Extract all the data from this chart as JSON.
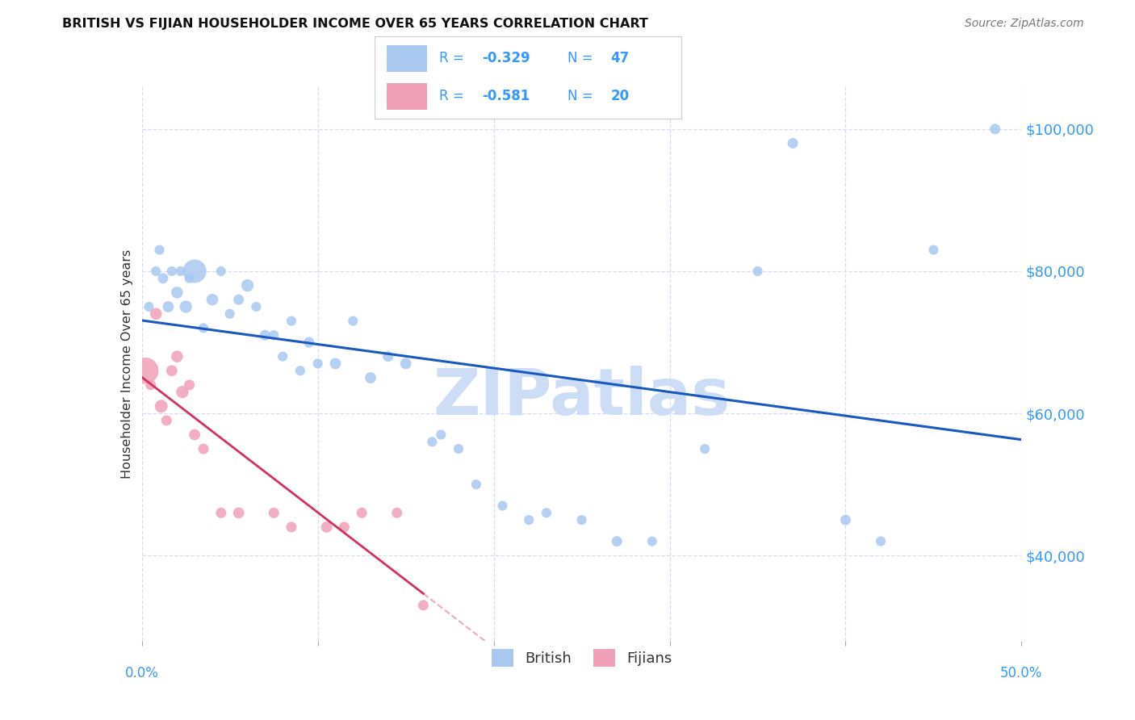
{
  "title": "BRITISH VS FIJIAN HOUSEHOLDER INCOME OVER 65 YEARS CORRELATION CHART",
  "source": "Source: ZipAtlas.com",
  "ylabel": "Householder Income Over 65 years",
  "british_label": "British",
  "fijian_label": "Fijians",
  "british_R": "-0.329",
  "british_N": "47",
  "fijian_R": "-0.581",
  "fijian_N": "20",
  "blue_scatter": "#a8c8f0",
  "pink_scatter": "#f0a0b8",
  "blue_line": "#1a5abf",
  "pink_line": "#d43060",
  "label_color": "#3399ff",
  "watermark_color": "#ccddf5",
  "british_x": [
    0.4,
    0.8,
    1.0,
    1.2,
    1.5,
    1.7,
    2.0,
    2.2,
    2.5,
    2.7,
    3.0,
    3.5,
    4.0,
    4.5,
    5.0,
    5.5,
    6.0,
    6.5,
    7.0,
    7.5,
    8.0,
    8.5,
    9.0,
    9.5,
    10.0,
    11.0,
    12.0,
    13.0,
    14.0,
    15.0,
    16.5,
    17.0,
    18.0,
    19.0,
    20.5,
    22.0,
    23.0,
    25.0,
    27.0,
    29.0,
    32.0,
    35.0,
    37.0,
    40.0,
    42.0,
    45.0,
    48.5
  ],
  "british_y": [
    75000,
    80000,
    83000,
    79000,
    75000,
    80000,
    77000,
    80000,
    75000,
    79000,
    80000,
    72000,
    76000,
    80000,
    74000,
    76000,
    78000,
    75000,
    71000,
    71000,
    68000,
    73000,
    66000,
    70000,
    67000,
    67000,
    73000,
    65000,
    68000,
    67000,
    56000,
    57000,
    55000,
    50000,
    47000,
    45000,
    46000,
    45000,
    42000,
    42000,
    55000,
    80000,
    98000,
    45000,
    42000,
    83000,
    100000
  ],
  "british_size": [
    35,
    35,
    35,
    40,
    45,
    35,
    50,
    35,
    55,
    35,
    200,
    35,
    50,
    35,
    35,
    40,
    55,
    35,
    40,
    35,
    35,
    35,
    35,
    40,
    35,
    45,
    35,
    45,
    40,
    45,
    35,
    35,
    35,
    35,
    35,
    35,
    35,
    35,
    40,
    35,
    35,
    35,
    40,
    40,
    35,
    35,
    40
  ],
  "fijian_x": [
    0.2,
    0.5,
    0.8,
    1.1,
    1.4,
    1.7,
    2.0,
    2.3,
    2.7,
    3.0,
    3.5,
    4.5,
    5.5,
    7.5,
    8.5,
    10.5,
    11.5,
    12.5,
    14.5,
    16.0
  ],
  "fijian_y": [
    66000,
    64000,
    74000,
    61000,
    59000,
    66000,
    68000,
    63000,
    64000,
    57000,
    55000,
    46000,
    46000,
    46000,
    44000,
    44000,
    44000,
    46000,
    46000,
    33000
  ],
  "fijian_size": [
    250,
    40,
    50,
    60,
    40,
    45,
    50,
    55,
    40,
    45,
    40,
    40,
    45,
    40,
    40,
    45,
    40,
    40,
    40,
    40
  ],
  "xlim": [
    0,
    50
  ],
  "ylim": [
    28000,
    106000
  ],
  "yticks": [
    40000,
    60000,
    80000,
    100000
  ],
  "ytick_labels": [
    "$40,000",
    "$60,000",
    "$80,000",
    "$100,000"
  ],
  "xtick_positions": [
    0,
    10,
    20,
    30,
    40,
    50
  ],
  "grid_color": "#d8ddf0",
  "bg_color": "#ffffff"
}
